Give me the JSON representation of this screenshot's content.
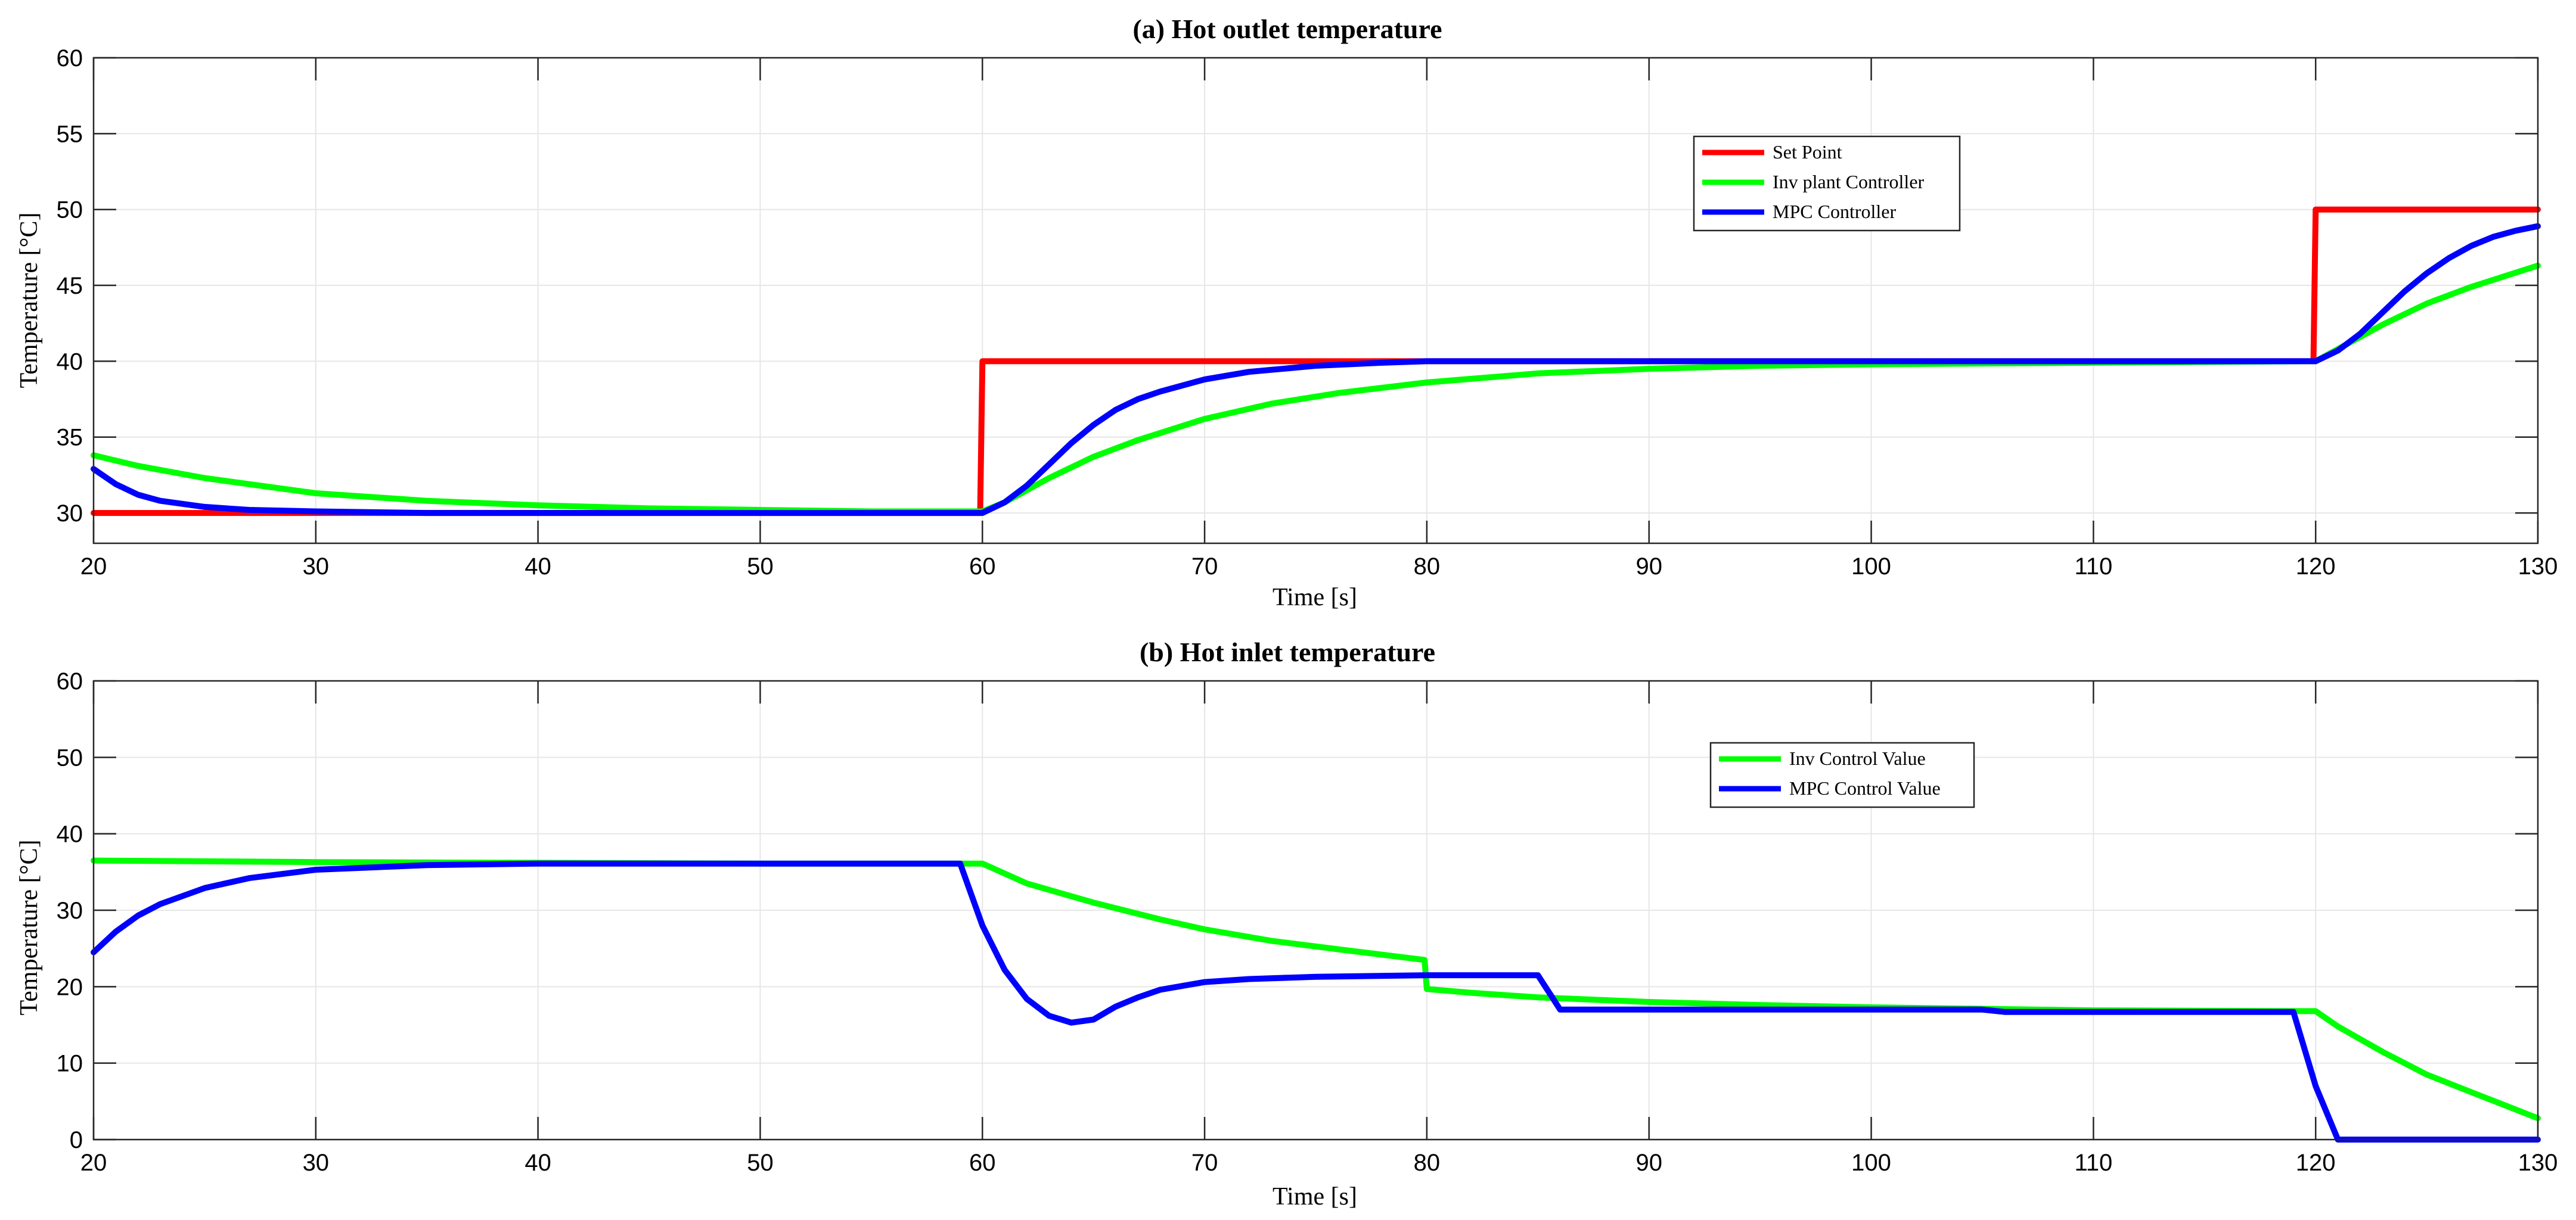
{
  "chart_data": [
    {
      "type": "line",
      "title": "(a) Hot outlet temperature",
      "xlabel": "Time [s]",
      "ylabel": "Temperature [°C]",
      "xlim": [
        20,
        130
      ],
      "ylim": [
        28,
        60
      ],
      "xticks": [
        20,
        30,
        40,
        50,
        60,
        70,
        80,
        90,
        100,
        110,
        120,
        130
      ],
      "yticks": [
        30,
        35,
        40,
        45,
        50,
        55,
        60
      ],
      "grid": true,
      "legend_position": "upper-right-of-center",
      "series": [
        {
          "name": "Set Point",
          "color": "#ff0000",
          "x": [
            20,
            59.9,
            60.0,
            119.9,
            120.0,
            130
          ],
          "y": [
            30,
            30,
            40,
            40,
            50,
            50
          ]
        },
        {
          "name": "Inv plant Controller",
          "color": "#00ff00",
          "x": [
            20,
            22,
            25,
            30,
            35,
            40,
            45,
            50,
            55,
            60,
            61,
            63,
            65,
            67,
            70,
            73,
            76,
            80,
            85,
            90,
            95,
            100,
            110,
            120,
            121,
            123,
            125,
            127,
            130
          ],
          "y": [
            33.8,
            33.1,
            32.3,
            31.3,
            30.8,
            30.5,
            30.3,
            30.2,
            30.1,
            30.1,
            30.7,
            32.3,
            33.7,
            34.8,
            36.2,
            37.2,
            37.9,
            38.6,
            39.2,
            39.5,
            39.7,
            39.8,
            39.9,
            40.0,
            40.8,
            42.4,
            43.8,
            44.9,
            46.3
          ]
        },
        {
          "name": "MPC Controller",
          "color": "#0000ff",
          "x": [
            20,
            21,
            22,
            23,
            25,
            27,
            30,
            35,
            40,
            50,
            60,
            61,
            62,
            63,
            64,
            65,
            66,
            67,
            68,
            70,
            72,
            75,
            78,
            80,
            90,
            100,
            110,
            120,
            121,
            122,
            123,
            124,
            125,
            126,
            127,
            128,
            129,
            130
          ],
          "y": [
            32.9,
            31.9,
            31.2,
            30.8,
            30.4,
            30.2,
            30.1,
            30.0,
            30.0,
            30.0,
            30.0,
            30.7,
            31.8,
            33.2,
            34.6,
            35.8,
            36.8,
            37.5,
            38.0,
            38.8,
            39.3,
            39.7,
            39.9,
            40.0,
            40.0,
            40.0,
            40.0,
            40.0,
            40.7,
            41.8,
            43.2,
            44.6,
            45.8,
            46.8,
            47.6,
            48.2,
            48.6,
            48.9
          ]
        }
      ]
    },
    {
      "type": "line",
      "title": "(b) Hot inlet temperature",
      "xlabel": "Time [s]",
      "ylabel": "Temperature [°C]",
      "xlim": [
        20,
        130
      ],
      "ylim": [
        0,
        60
      ],
      "xticks": [
        20,
        30,
        40,
        50,
        60,
        70,
        80,
        90,
        100,
        110,
        120,
        130
      ],
      "yticks": [
        0,
        10,
        20,
        30,
        40,
        50,
        60
      ],
      "grid": true,
      "legend_position": "upper-right-of-center",
      "series": [
        {
          "name": "Inv Control Value",
          "color": "#00ff00",
          "x": [
            20,
            30,
            40,
            50,
            59,
            60,
            62,
            65,
            68,
            70,
            73,
            76,
            79.9,
            80,
            82,
            85,
            90,
            95,
            100,
            105,
            110,
            119,
            120,
            121,
            123,
            125,
            127,
            130
          ],
          "y": [
            36.5,
            36.3,
            36.2,
            36.1,
            36.1,
            36.1,
            33.5,
            31.0,
            28.8,
            27.5,
            26.0,
            24.9,
            23.5,
            19.7,
            19.2,
            18.6,
            18.0,
            17.6,
            17.3,
            17.1,
            16.9,
            16.8,
            16.8,
            14.8,
            11.5,
            8.5,
            6.2,
            2.8
          ]
        },
        {
          "name": "MPC Control Value",
          "color": "#0000ff",
          "x": [
            20,
            21,
            22,
            23,
            25,
            27,
            30,
            35,
            40,
            50,
            59,
            60,
            61,
            62,
            63,
            64,
            65,
            66,
            67,
            68,
            70,
            72,
            75,
            80,
            85,
            86,
            90,
            100,
            105,
            106,
            110,
            119,
            120,
            121,
            125,
            130
          ],
          "y": [
            24.5,
            27.2,
            29.3,
            30.8,
            32.9,
            34.2,
            35.3,
            35.9,
            36.1,
            36.1,
            36.1,
            28.0,
            22.2,
            18.4,
            16.2,
            15.3,
            15.7,
            17.4,
            18.6,
            19.6,
            20.6,
            21.0,
            21.3,
            21.5,
            21.5,
            17.0,
            17.0,
            17.0,
            17.0,
            16.7,
            16.7,
            16.7,
            7.0,
            0.0,
            0.0,
            0.0
          ]
        }
      ]
    }
  ]
}
